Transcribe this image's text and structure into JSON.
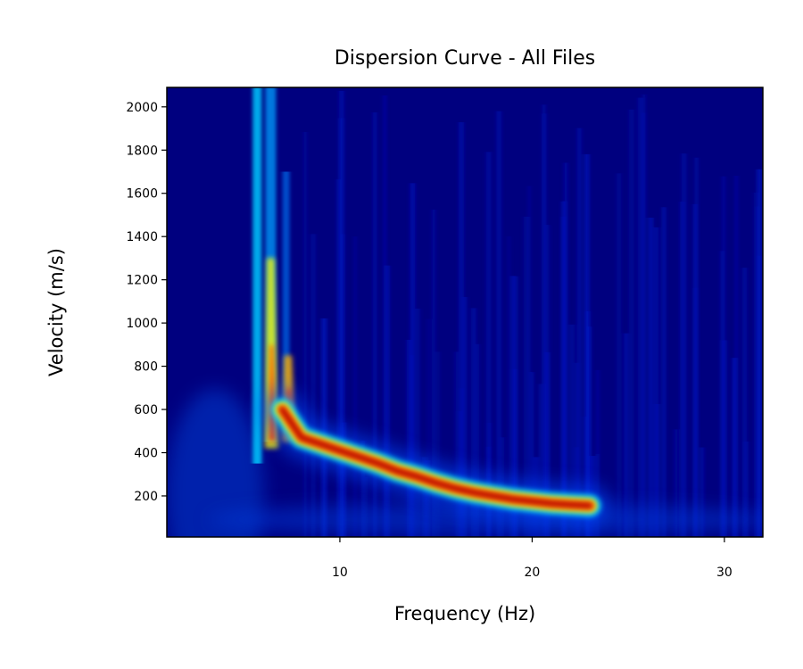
{
  "chart_data": {
    "type": "heatmap",
    "title": "Dispersion Curve - All Files",
    "xlabel": "Frequency (Hz)",
    "ylabel": "Velocity (m/s)",
    "xlim": [
      1,
      32
    ],
    "ylim": [
      10,
      2090
    ],
    "x_ticks": [
      {
        "value": 10,
        "label": "10"
      },
      {
        "value": 20,
        "label": "20"
      },
      {
        "value": 30,
        "label": "30"
      }
    ],
    "y_ticks": [
      {
        "value": 200,
        "label": "200"
      },
      {
        "value": 400,
        "label": "400"
      },
      {
        "value": 600,
        "label": "600"
      },
      {
        "value": 800,
        "label": "800"
      },
      {
        "value": 1000,
        "label": "1000"
      },
      {
        "value": 1200,
        "label": "1200"
      },
      {
        "value": 1400,
        "label": "1400"
      },
      {
        "value": 1600,
        "label": "1600"
      },
      {
        "value": 1800,
        "label": "1800"
      },
      {
        "value": 2000,
        "label": "2000"
      }
    ],
    "colormap": "jet",
    "grid": false,
    "legend": "none",
    "ridge": {
      "frequency": [
        7.0,
        8.0,
        9.0,
        10.0,
        11.0,
        12.0,
        13.0,
        14.0,
        15.0,
        16.0,
        17.0,
        18.0,
        19.0,
        20.0,
        21.0,
        22.0,
        23.0
      ],
      "velocity": [
        600,
        470,
        440,
        410,
        380,
        350,
        315,
        290,
        260,
        235,
        215,
        200,
        185,
        175,
        165,
        160,
        155
      ]
    },
    "vertical_streaks": [
      {
        "frequency": 5.7,
        "velocity_range": [
          350,
          2090
        ]
      },
      {
        "frequency": 6.4,
        "velocity_range": [
          450,
          2090
        ]
      },
      {
        "frequency": 7.2,
        "velocity_range": [
          550,
          1700
        ]
      }
    ]
  }
}
